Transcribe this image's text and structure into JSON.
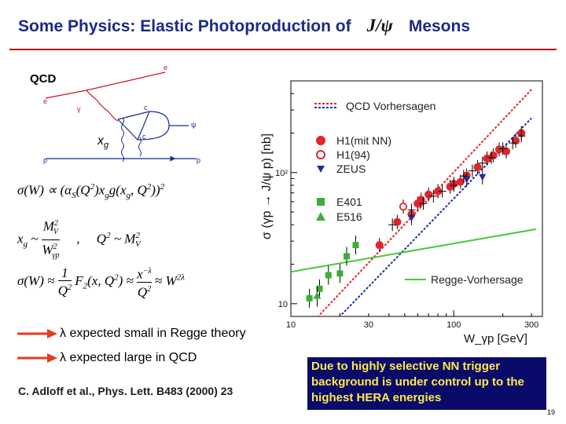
{
  "slide": {
    "title_left": "Some Physics: Elastic Photoproduction of",
    "title_symbol": "J/ψ",
    "title_right": "Mesons",
    "qcd_label": "QCD",
    "bullet_1": "λ expected small in Regge theory",
    "bullet_2": "λ expected large in QCD",
    "citation": "C. Adloff et al., Phys. Lett. B483 (2000) 23",
    "callout": "Due to highly selective NN trigger background is under control up to the highest HERA energies",
    "page_number": "19"
  },
  "diagram": {
    "labels": {
      "e_in": "e",
      "e_out": "e",
      "gamma": "γ",
      "c_top": "c",
      "c_bottom": "c",
      "psi": "ψ",
      "p_in": "p",
      "p_out": "p",
      "xg": "x_g"
    }
  },
  "equations": {
    "eq1": "σ(W) ∝ (α_S(Q²) x_g g(x_g, Q²))²",
    "eq2a": "x_g ~ M_V² / W_γp²",
    "eq2b": "Q² ~ M_V²",
    "eq3": "σ(W) ≈ (1/Q²) F₂(x, Q²) ≈ x^−λ / Q² ≈ W^2λ"
  },
  "chart_data": {
    "type": "scatter",
    "title": "",
    "xlabel": "W_γp [GeV]",
    "ylabel": "σ (γp → J/ψ p) [nb]",
    "xscale": "log",
    "yscale": "log",
    "xlim": [
      10,
      350
    ],
    "ylim": [
      8,
      500
    ],
    "xtick_labels": [
      "10",
      "30",
      "100",
      "300"
    ],
    "ytick_labels": [
      "10",
      "10²"
    ],
    "legend": [
      "QCD Vorhersagen",
      "H1(mit NN)",
      "H1(94)",
      "ZEUS",
      "E401",
      "E516",
      "Regge-Vorhersage"
    ],
    "series": [
      {
        "name": "QCD Vorhersagen",
        "kind": "dashed-line",
        "color": "#e0262c",
        "x": [
          14,
          300
        ],
        "y": [
          7.5,
          430
        ]
      },
      {
        "name": "QCD Vorhersagen",
        "kind": "dashed-line",
        "color": "#1f2f9a",
        "x": [
          19,
          300
        ],
        "y": [
          7.5,
          260
        ]
      },
      {
        "name": "Regge-Vorhersage",
        "kind": "line",
        "color": "#49c83a",
        "x": [
          10,
          320
        ],
        "y": [
          17.5,
          37
        ]
      },
      {
        "name": "H1(mit NN)",
        "kind": "marker",
        "marker": "circle",
        "color": "#e0262c",
        "x": [
          35,
          45,
          55,
          60,
          63,
          70,
          80,
          95,
          100,
          110,
          120,
          140,
          160,
          175,
          190,
          210,
          240,
          260
        ],
        "y": [
          28,
          42,
          48,
          58,
          62,
          68,
          72,
          78,
          82,
          85,
          95,
          110,
          128,
          135,
          150,
          145,
          175,
          200
        ]
      },
      {
        "name": "H1(94)",
        "kind": "marker",
        "marker": "open-circle",
        "color": "#e0262c",
        "x": [
          49
        ],
        "y": [
          55
        ]
      },
      {
        "name": "ZEUS",
        "kind": "marker",
        "marker": "down-triangle",
        "color": "#1f2f9a",
        "x": [
          55,
          120,
          150
        ],
        "y": [
          45,
          88,
          92
        ]
      },
      {
        "name": "E401",
        "kind": "marker",
        "marker": "square",
        "color": "#3fae34",
        "x": [
          13,
          15,
          17,
          20,
          22,
          25
        ],
        "y": [
          11,
          13,
          16.5,
          17,
          23,
          28
        ]
      },
      {
        "name": "E516",
        "kind": "marker",
        "marker": "triangle",
        "color": "#3fae34",
        "x": [
          14.5
        ],
        "y": [
          11.5
        ]
      },
      {
        "name": "ZEUS",
        "kind": "cross",
        "color": "#000000",
        "x": [
          42,
          55,
          65,
          75,
          85,
          100,
          115,
          130,
          150,
          170,
          200,
          230,
          260
        ],
        "y": [
          40,
          52,
          58,
          66,
          72,
          80,
          94,
          103,
          118,
          130,
          152,
          168,
          190
        ]
      }
    ]
  }
}
